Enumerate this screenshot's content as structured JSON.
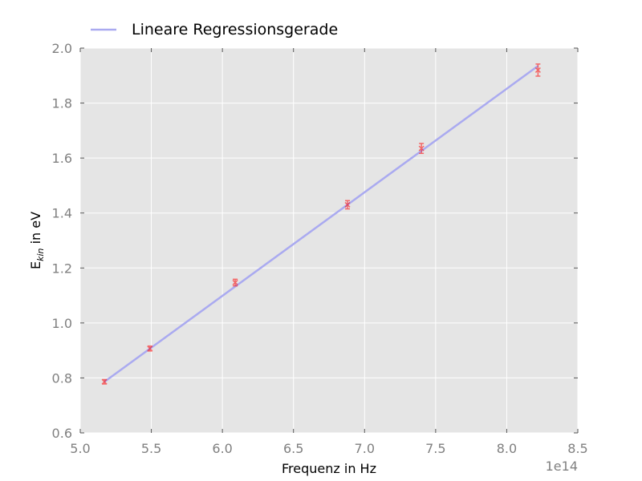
{
  "chart_data": {
    "type": "scatter",
    "xlabel": "Frequenz in Hz",
    "ylabel_main": "E",
    "ylabel_sub": "kin",
    "ylabel_rest": " in eV",
    "x_offset_label": "1e14",
    "xlim": [
      5.0,
      8.5
    ],
    "ylim": [
      0.6,
      2.0
    ],
    "x_ticks": [
      "5.0",
      "5.5",
      "6.0",
      "6.5",
      "7.0",
      "7.5",
      "8.0",
      "8.5"
    ],
    "y_ticks": [
      "0.6",
      "0.8",
      "1.0",
      "1.2",
      "1.4",
      "1.6",
      "1.8",
      "2.0"
    ],
    "grid": true,
    "legend_position": "top-left",
    "measurements": {
      "x": [
        5.17,
        5.49,
        6.09,
        6.88,
        7.4,
        8.22
      ],
      "y": [
        0.786,
        0.907,
        1.147,
        1.43,
        1.635,
        1.92
      ],
      "yerr": [
        0.008,
        0.009,
        0.012,
        0.015,
        0.018,
        0.022
      ],
      "color": "#ff0000"
    },
    "series": [
      {
        "name": "Lineare Regressionsgerade",
        "x": [
          5.17,
          8.22
        ],
        "y": [
          0.786,
          1.935
        ],
        "color": "#aaaaf0"
      }
    ]
  },
  "colors": {
    "plot_background": "#e5e5e5",
    "grid": "#ffffff",
    "tick_label": "#808080"
  }
}
